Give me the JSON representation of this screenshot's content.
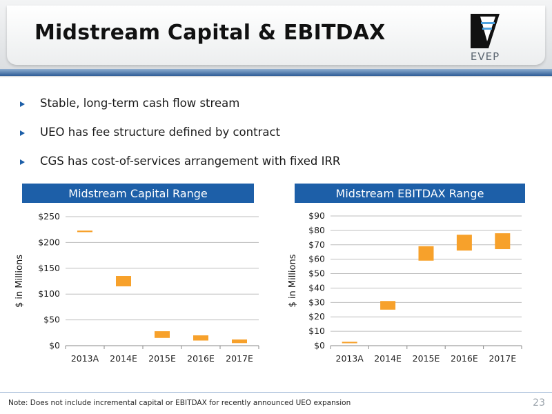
{
  "title": "Midstream Capital & EBITDAX",
  "logo_text": "EVEP",
  "bullets": [
    "Stable, long-term cash flow stream",
    "UEO has fee structure defined by contract",
    "CGS has cost-of-services arrangement with fixed IRR"
  ],
  "footer_note": "Note: Does not include incremental capital or EBITDAX for recently announced UEO expansion",
  "page_number": "23",
  "colors": {
    "bar": "#f7a12b",
    "panel": "#1d5fa8",
    "grid": "#bdbdbd",
    "rule": "#2f5d97"
  },
  "chart_data": [
    {
      "type": "bar",
      "subtype": "floating-range",
      "title": "Midstream Capital Range",
      "ylabel": "$ in Millions",
      "categories": [
        "2013A",
        "2014E",
        "2015E",
        "2016E",
        "2017E"
      ],
      "ranges": [
        [
          220,
          223
        ],
        [
          115,
          135
        ],
        [
          15,
          28
        ],
        [
          10,
          20
        ],
        [
          5,
          12
        ]
      ],
      "ylim": [
        0,
        250
      ],
      "yticks": [
        0,
        50,
        100,
        150,
        200,
        250
      ],
      "ytick_labels": [
        "$0",
        "$50",
        "$100",
        "$150",
        "$200",
        "$250"
      ],
      "grid": true
    },
    {
      "type": "bar",
      "subtype": "floating-range",
      "title": "Midstream EBITDAX Range",
      "ylabel": "$ in Millions",
      "categories": [
        "2013A",
        "2014E",
        "2015E",
        "2016E",
        "2017E"
      ],
      "ranges": [
        [
          1.7,
          2.7
        ],
        [
          25,
          31
        ],
        [
          59,
          69
        ],
        [
          66,
          77
        ],
        [
          67,
          78
        ]
      ],
      "ylim": [
        0,
        90
      ],
      "yticks": [
        0,
        10,
        20,
        30,
        40,
        50,
        60,
        70,
        80,
        90
      ],
      "ytick_labels": [
        "$0",
        "$10",
        "$20",
        "$30",
        "$40",
        "$50",
        "$60",
        "$70",
        "$80",
        "$90"
      ],
      "grid": true
    }
  ]
}
